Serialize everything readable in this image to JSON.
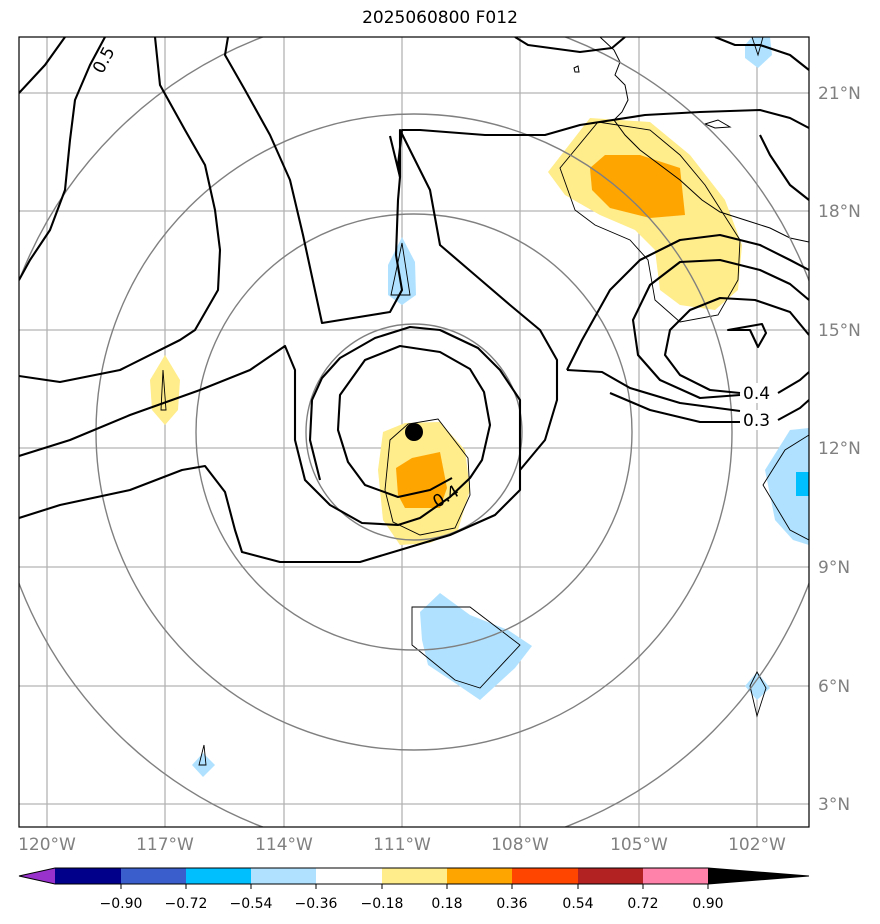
{
  "title": "2025060800 F012",
  "lat_labels": [
    "21°N",
    "18°N",
    "15°N",
    "12°N",
    "9°N",
    "6°N",
    "3°N"
  ],
  "lon_labels": [
    "120°W",
    "117°W",
    "114°W",
    "111°W",
    "108°W",
    "105°W",
    "102°W"
  ],
  "contour_labels": [
    "0.5",
    "0.4",
    "0.4",
    "0.3"
  ],
  "colorbar": {
    "ticks": [
      "−0.90",
      "−0.72",
      "−0.54",
      "−0.36",
      "−0.18",
      "0.18",
      "0.36",
      "0.54",
      "0.72",
      "0.90"
    ],
    "colors": [
      "#9932cc",
      "#00008b",
      "#3a5fcd",
      "#00bfff",
      "#b0e2ff",
      "#ffffff",
      "#ffec8b",
      "#ffa500",
      "#ff4500",
      "#b22222",
      "#ff82ab"
    ]
  },
  "fill_colors": {
    "light_yellow": "#ffec8b",
    "orange": "#ffa500",
    "light_blue": "#b0e2ff",
    "deep_sky_blue": "#00bfff"
  },
  "storm_center": {
    "lat": "12.5°N",
    "lon": "110.6°W"
  }
}
